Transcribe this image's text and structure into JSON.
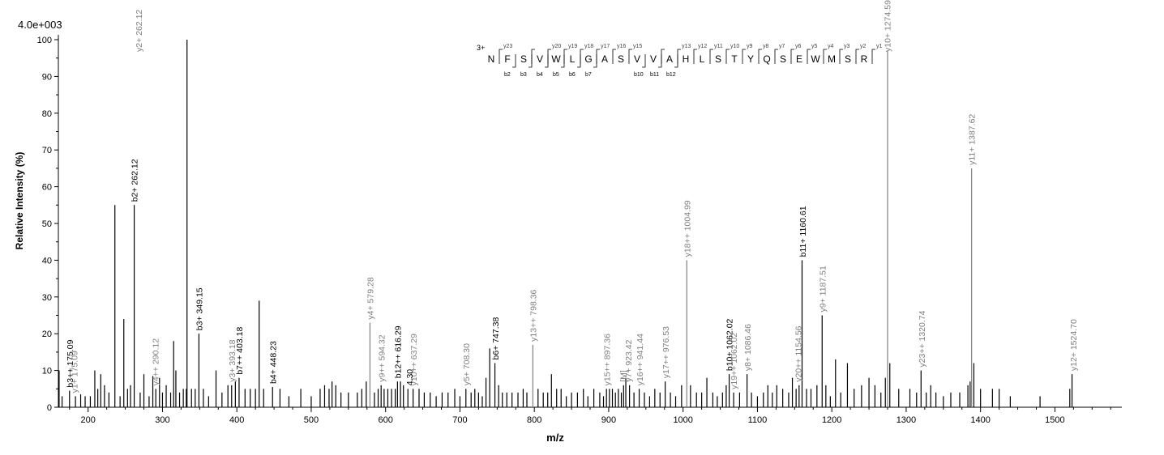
{
  "scale_label": "4.0e+003",
  "chart_data": {
    "type": "bar",
    "xlabel": "m/z",
    "ylabel": "Relative   Intensity (%)",
    "xlim": [
      160,
      1590
    ],
    "ylim": [
      0,
      100
    ],
    "xticks": [
      200,
      300,
      400,
      500,
      600,
      700,
      800,
      900,
      1000,
      1100,
      1200,
      1300,
      1400,
      1500
    ],
    "yticks": [
      0,
      10,
      20,
      30,
      40,
      50,
      60,
      70,
      80,
      90,
      100
    ],
    "grid": false,
    "colors": {
      "b_ion": "#000000",
      "y_ion": "#808080",
      "unassigned": "#000000"
    },
    "peaks": [
      [
        161,
        10
      ],
      [
        165,
        3
      ],
      [
        175,
        4.5
      ],
      [
        183,
        3
      ],
      [
        190,
        3.5
      ],
      [
        196,
        3
      ],
      [
        203,
        3
      ],
      [
        209,
        10
      ],
      [
        213,
        5
      ],
      [
        217,
        9
      ],
      [
        222,
        6
      ],
      [
        228,
        4
      ],
      [
        236,
        55
      ],
      [
        243,
        3
      ],
      [
        248,
        24
      ],
      [
        253,
        5
      ],
      [
        257,
        6
      ],
      [
        262,
        55
      ],
      [
        270,
        4
      ],
      [
        275,
        9
      ],
      [
        282,
        3
      ],
      [
        287,
        8.5
      ],
      [
        291,
        5
      ],
      [
        296,
        8
      ],
      [
        300,
        4
      ],
      [
        305,
        6
      ],
      [
        311,
        4
      ],
      [
        315,
        18
      ],
      [
        318,
        10
      ],
      [
        323,
        4
      ],
      [
        328,
        5
      ],
      [
        332,
        5
      ],
      [
        333,
        100
      ],
      [
        339,
        5
      ],
      [
        344,
        5
      ],
      [
        349,
        20
      ],
      [
        355,
        5
      ],
      [
        362,
        3
      ],
      [
        372,
        10
      ],
      [
        380,
        4
      ],
      [
        388,
        6
      ],
      [
        393,
        6
      ],
      [
        398,
        7
      ],
      [
        403,
        8
      ],
      [
        411,
        5
      ],
      [
        418,
        5
      ],
      [
        425,
        5
      ],
      [
        430,
        29
      ],
      [
        436,
        5
      ],
      [
        448,
        5.5
      ],
      [
        458,
        5
      ],
      [
        470,
        3
      ],
      [
        486,
        5
      ],
      [
        500,
        3
      ],
      [
        512,
        5
      ],
      [
        518,
        6
      ],
      [
        524,
        5
      ],
      [
        528,
        7
      ],
      [
        533,
        6
      ],
      [
        540,
        4
      ],
      [
        550,
        4
      ],
      [
        562,
        4
      ],
      [
        568,
        5
      ],
      [
        574,
        7
      ],
      [
        579,
        23
      ],
      [
        585,
        4
      ],
      [
        590,
        5
      ],
      [
        594,
        6
      ],
      [
        598,
        5
      ],
      [
        603,
        5
      ],
      [
        608,
        5
      ],
      [
        613,
        5
      ],
      [
        616,
        7
      ],
      [
        620,
        7
      ],
      [
        624,
        6
      ],
      [
        630,
        5
      ],
      [
        637,
        5
      ],
      [
        645,
        5
      ],
      [
        652,
        4
      ],
      [
        660,
        4
      ],
      [
        668,
        3
      ],
      [
        676,
        4
      ],
      [
        684,
        4
      ],
      [
        693,
        5
      ],
      [
        700,
        3
      ],
      [
        708,
        5
      ],
      [
        715,
        4
      ],
      [
        720,
        5
      ],
      [
        725,
        4
      ],
      [
        730,
        3
      ],
      [
        735,
        8
      ],
      [
        740,
        16
      ],
      [
        747,
        12
      ],
      [
        752,
        6
      ],
      [
        757,
        4
      ],
      [
        763,
        4
      ],
      [
        770,
        4
      ],
      [
        778,
        4
      ],
      [
        785,
        5
      ],
      [
        790,
        4
      ],
      [
        798,
        17
      ],
      [
        805,
        5
      ],
      [
        812,
        4
      ],
      [
        818,
        4
      ],
      [
        823,
        9
      ],
      [
        830,
        5
      ],
      [
        836,
        5
      ],
      [
        843,
        3
      ],
      [
        850,
        4
      ],
      [
        858,
        4
      ],
      [
        866,
        5
      ],
      [
        872,
        3
      ],
      [
        880,
        5
      ],
      [
        888,
        4
      ],
      [
        893,
        3
      ],
      [
        897,
        5
      ],
      [
        901,
        5
      ],
      [
        905,
        5
      ],
      [
        909,
        4
      ],
      [
        913,
        5
      ],
      [
        917,
        4
      ],
      [
        920,
        6
      ],
      [
        923,
        8
      ],
      [
        928,
        6
      ],
      [
        934,
        4
      ],
      [
        941,
        5
      ],
      [
        948,
        4
      ],
      [
        955,
        3
      ],
      [
        962,
        5
      ],
      [
        969,
        4
      ],
      [
        976,
        7
      ],
      [
        983,
        4
      ],
      [
        990,
        3
      ],
      [
        998,
        6
      ],
      [
        1005,
        40
      ],
      [
        1010,
        6
      ],
      [
        1018,
        4
      ],
      [
        1025,
        4
      ],
      [
        1032,
        8
      ],
      [
        1040,
        4
      ],
      [
        1046,
        3
      ],
      [
        1053,
        4
      ],
      [
        1058,
        6
      ],
      [
        1062,
        9
      ],
      [
        1068,
        4
      ],
      [
        1076,
        4
      ],
      [
        1086,
        9
      ],
      [
        1092,
        4
      ],
      [
        1100,
        3
      ],
      [
        1108,
        4
      ],
      [
        1114,
        6
      ],
      [
        1120,
        4
      ],
      [
        1126,
        6
      ],
      [
        1134,
        5
      ],
      [
        1142,
        4
      ],
      [
        1147,
        8
      ],
      [
        1152,
        5
      ],
      [
        1156,
        6
      ],
      [
        1160,
        40
      ],
      [
        1166,
        5
      ],
      [
        1172,
        5
      ],
      [
        1180,
        6
      ],
      [
        1187,
        25
      ],
      [
        1192,
        6
      ],
      [
        1198,
        3
      ],
      [
        1205,
        13
      ],
      [
        1212,
        4
      ],
      [
        1221,
        12
      ],
      [
        1230,
        5
      ],
      [
        1240,
        6
      ],
      [
        1250,
        8
      ],
      [
        1258,
        6
      ],
      [
        1266,
        4
      ],
      [
        1272,
        8
      ],
      [
        1275,
        97
      ],
      [
        1278,
        12
      ],
      [
        1290,
        5
      ],
      [
        1305,
        5
      ],
      [
        1314,
        4
      ],
      [
        1320,
        10
      ],
      [
        1327,
        4
      ],
      [
        1333,
        6
      ],
      [
        1340,
        4
      ],
      [
        1350,
        3
      ],
      [
        1360,
        4
      ],
      [
        1372,
        4
      ],
      [
        1383,
        6
      ],
      [
        1386,
        7
      ],
      [
        1388,
        65
      ],
      [
        1391,
        12
      ],
      [
        1400,
        5
      ],
      [
        1416,
        5
      ],
      [
        1425,
        5
      ],
      [
        1440,
        3
      ],
      [
        1480,
        3
      ],
      [
        1520,
        5
      ],
      [
        1523,
        9
      ]
    ],
    "annotations": [
      {
        "label": "b3++ 175.09",
        "x": 175.09,
        "ion": "b",
        "rot": true,
        "top": false
      },
      {
        "label": "y1+ 175.09",
        "x": 181,
        "ion": "y",
        "rot": true,
        "top": false
      },
      {
        "label": "b2+ 262.12",
        "x": 262.12,
        "ion": "b",
        "rot": true,
        "top": false
      },
      {
        "label": "y2+ 262.12",
        "x": 268,
        "ion": "y",
        "rot": true,
        "top": true
      },
      {
        "label": "y4++ 290.12",
        "x": 290.12,
        "ion": "y",
        "rot": true,
        "top": false
      },
      {
        "label": "b3+ 349.15",
        "x": 349.15,
        "ion": "b",
        "rot": true,
        "top": false
      },
      {
        "label": "y3+ 393.18",
        "x": 393.18,
        "ion": "y",
        "rot": true,
        "top": false
      },
      {
        "label": "b7++ 403.18",
        "x": 403.18,
        "ion": "b",
        "rot": true,
        "top": false
      },
      {
        "label": "b4+ 448.23",
        "x": 448.23,
        "ion": "b",
        "rot": true,
        "top": false
      },
      {
        "label": "y4+ 579.28",
        "x": 579.28,
        "ion": "y",
        "rot": true,
        "top": false
      },
      {
        "label": "y9++ 594.32",
        "x": 594.32,
        "ion": "y",
        "rot": true,
        "top": false
      },
      {
        "label": "b12++ 616.29",
        "x": 616.29,
        "ion": "b",
        "rot": true,
        "top": false
      },
      {
        "label": "y10++ 637.29",
        "x": 637.29,
        "ion": "y",
        "rot": true,
        "top": false
      },
      {
        "label": "4.30",
        "x": 632,
        "ion": "b",
        "rot": true,
        "top": false
      },
      {
        "label": "y5+ 708.30",
        "x": 708.3,
        "ion": "y",
        "rot": true,
        "top": false
      },
      {
        "label": "b6+ 747.38",
        "x": 747.38,
        "ion": "b",
        "rot": true,
        "top": false
      },
      {
        "label": "y13++ 798.36",
        "x": 798.36,
        "ion": "y",
        "rot": true,
        "top": false
      },
      {
        "label": "y15++ 897.36",
        "x": 897.36,
        "ion": "y",
        "rot": true,
        "top": false
      },
      {
        "label": "[M]",
        "x": 919,
        "ion": "y",
        "rot": true,
        "top": false
      },
      {
        "label": "y7+ 923.42",
        "x": 926,
        "ion": "y",
        "rot": true,
        "top": false
      },
      {
        "label": "y16++ 941.44",
        "x": 941.44,
        "ion": "y",
        "rot": true,
        "top": false
      },
      {
        "label": "y17++ 976.53",
        "x": 976.53,
        "ion": "y",
        "rot": true,
        "top": false
      },
      {
        "label": "y18++ 1004.99",
        "x": 1004.99,
        "ion": "y",
        "rot": true,
        "top": false
      },
      {
        "label": "b10+ 1062.02",
        "x": 1062.02,
        "ion": "b",
        "rot": true,
        "top": false
      },
      {
        "label": "y19++ 1062.02",
        "x": 1068,
        "ion": "y",
        "rot": true,
        "top": false
      },
      {
        "label": "y8+ 1086.46",
        "x": 1086.46,
        "ion": "y",
        "rot": true,
        "top": false
      },
      {
        "label": "b11+ 1160.61",
        "x": 1160.61,
        "ion": "b",
        "rot": true,
        "top": false
      },
      {
        "label": "y20++ 1154.56",
        "x": 1154.56,
        "ion": "y",
        "rot": true,
        "top": false
      },
      {
        "label": "y9+ 1187.51",
        "x": 1187.51,
        "ion": "y",
        "rot": true,
        "top": false
      },
      {
        "label": "y10+ 1274.59",
        "x": 1274.59,
        "ion": "y",
        "rot": true,
        "top": true
      },
      {
        "label": "y23++ 1320.74",
        "x": 1320.74,
        "ion": "y",
        "rot": true,
        "top": false
      },
      {
        "label": "y11+ 1387.62",
        "x": 1387.62,
        "ion": "y",
        "rot": true,
        "top": false
      },
      {
        "label": "y12+ 1524.70",
        "x": 1524.7,
        "ion": "y",
        "rot": true,
        "top": false
      }
    ],
    "sequence": {
      "charge": "3+",
      "residues": [
        "N",
        "F",
        "S",
        "V",
        "W",
        "L",
        "G",
        "A",
        "S",
        "V",
        "V",
        "A",
        "H",
        "L",
        "S",
        "T",
        "Y",
        "Q",
        "S",
        "E",
        "W",
        "M",
        "S",
        "R"
      ],
      "y_labels": [
        "y23",
        "",
        "y20",
        "y19",
        "y18",
        "y17",
        "y16",
        "y15",
        "",
        "y13",
        "y12",
        "y11",
        "y10",
        "y9",
        "y8",
        "y7",
        "y6",
        "y5",
        "y4",
        "y3",
        "y2",
        "y1"
      ],
      "y_after": [
        1,
        3,
        4,
        5,
        6,
        7,
        8,
        9,
        11,
        12,
        13,
        14,
        15,
        16,
        17,
        18,
        19,
        20,
        21,
        22,
        23,
        24
      ],
      "b_labels": [
        "b2",
        "b3",
        "b4",
        "b5",
        "b6",
        "b7",
        "b10",
        "b11",
        "b12"
      ],
      "b_after": [
        2,
        3,
        4,
        5,
        6,
        7,
        10,
        11,
        12
      ]
    }
  }
}
